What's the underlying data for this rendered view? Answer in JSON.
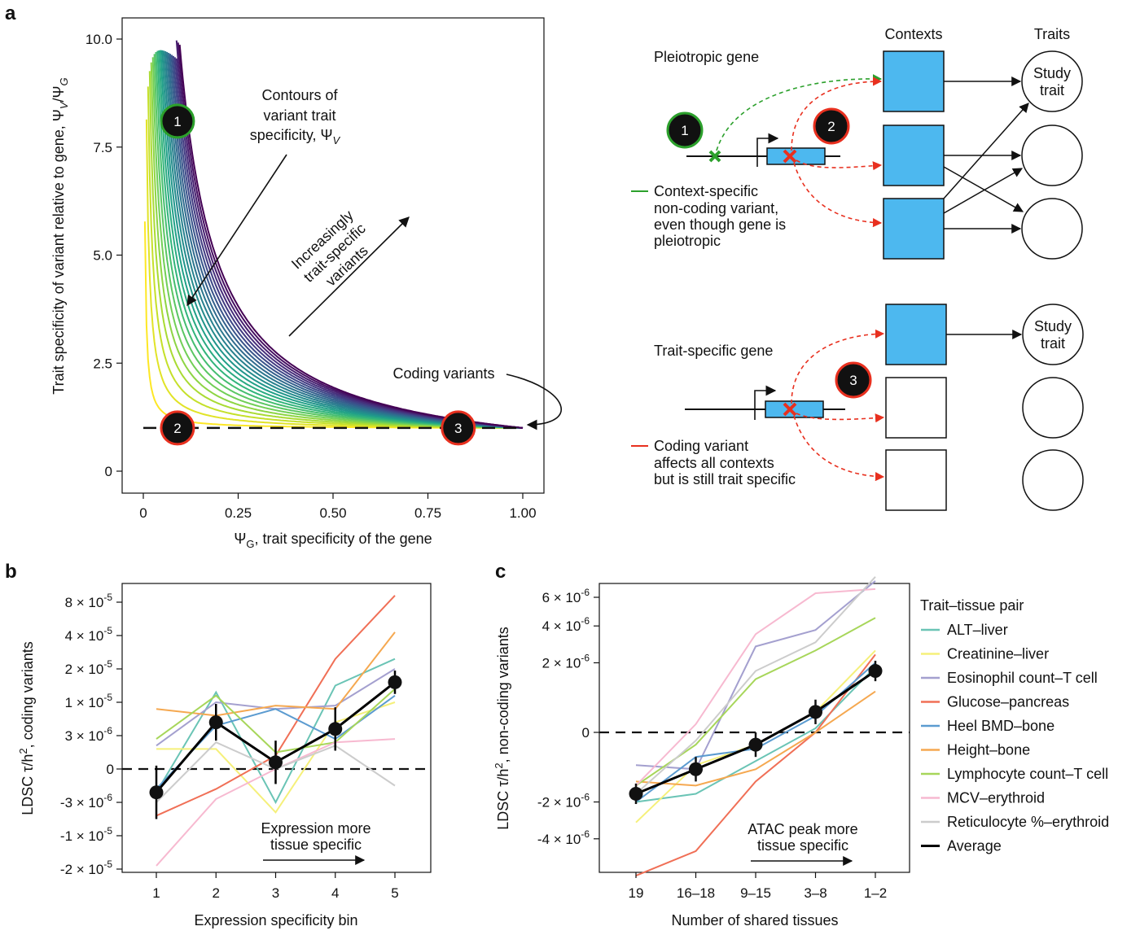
{
  "panels": {
    "a": "a",
    "b": "b",
    "c": "c"
  },
  "chart_data": [
    {
      "id": "a",
      "type": "line",
      "xlabel_pre": "Ψ",
      "xlabel_sub": "G",
      "xlabel_post": ", trait specificity of the gene",
      "ylabel": "Trait specificity of variant relative to gene, Ψ",
      "ylabel_sub1": "V",
      "ylabel_mid": "/Ψ",
      "ylabel_sub2": "G",
      "xlim": [
        0,
        1
      ],
      "ylim": [
        0,
        10
      ],
      "xticks": [
        0,
        0.25,
        0.5,
        0.75,
        1.0
      ],
      "xtick_labels": [
        "0",
        "0.25",
        "0.50",
        "0.75",
        "1.00"
      ],
      "yticks": [
        0,
        2.5,
        5.0,
        7.5,
        10.0
      ],
      "ytick_labels": [
        "0",
        "2.5",
        "5.0",
        "7.5",
        "10.0"
      ],
      "contour_psiV": [
        0.02,
        0.06,
        0.1,
        0.14,
        0.18,
        0.22,
        0.26,
        0.3,
        0.34,
        0.38,
        0.42,
        0.46,
        0.5,
        0.54,
        0.58,
        0.62,
        0.66,
        0.7,
        0.74,
        0.78,
        0.82,
        0.86,
        0.9,
        0.94
      ],
      "colormap": [
        "#fde725",
        "#b5de2b",
        "#6ece58",
        "#35b779",
        "#1f9e89",
        "#26828e",
        "#31688e",
        "#3e4989",
        "#482878",
        "#440154"
      ],
      "reference_line_y": 1,
      "points": [
        {
          "label": "1",
          "x": 0.09,
          "y": 8.1,
          "ring": "#2ca02c"
        },
        {
          "label": "2",
          "x": 0.09,
          "y": 1.0,
          "ring": "#e8301f"
        },
        {
          "label": "3",
          "x": 0.83,
          "y": 1.0,
          "ring": "#e8301f"
        }
      ],
      "annotations": {
        "contours": [
          "Contours of",
          "variant trait",
          "specificity, Ψ"
        ],
        "contours_sub": "V",
        "increasing": [
          "Increasingly",
          "trait-specific",
          "variants"
        ],
        "coding": "Coding variants"
      }
    },
    {
      "id": "b",
      "type": "line",
      "xlabel": "Expression specificity bin",
      "ylabel_pre": "LDSC τ/h",
      "ylabel_sup": "2",
      "ylabel_post": ", coding variants",
      "categories": [
        "1",
        "2",
        "3",
        "4",
        "5"
      ],
      "ytick_labels": [
        "8 × 10",
        "4 × 10",
        "2 × 10",
        "1 × 10",
        "3 × 10",
        "0",
        "-3 × 10",
        "-1 × 10",
        "-2 × 10"
      ],
      "ytick_exps": [
        "-5",
        "-5",
        "-5",
        "-5",
        "-6",
        "",
        "-6",
        "-5",
        "-5"
      ],
      "yticks_transformed": [
        8,
        7,
        6,
        5,
        4,
        3,
        2,
        1,
        0
      ],
      "annotation": [
        "Expression more",
        "tissue specific"
      ],
      "series": [
        {
          "name": "ALT–liver",
          "color": "#6ac4b5",
          "values": [
            2.3,
            5.3,
            2.0,
            5.5,
            6.3
          ]
        },
        {
          "name": "Creatinine–liver",
          "color": "#f5f07a",
          "values": [
            3.6,
            3.6,
            1.7,
            4.4,
            5.0
          ]
        },
        {
          "name": "Eosinophil count–T cell",
          "color": "#a4a0cf",
          "values": [
            3.7,
            5.0,
            4.8,
            4.9,
            6.0
          ]
        },
        {
          "name": "Glucose–pancreas",
          "color": "#f06f56",
          "values": [
            1.6,
            2.4,
            3.4,
            6.3,
            8.2
          ]
        },
        {
          "name": "Heel BMD–bone",
          "color": "#5b9bd0",
          "values": [
            2.4,
            4.3,
            4.8,
            3.9,
            5.2
          ]
        },
        {
          "name": "Height–bone",
          "color": "#f5a850",
          "values": [
            4.8,
            4.6,
            4.9,
            4.8,
            7.1
          ]
        },
        {
          "name": "Lymphocyte count–T cell",
          "color": "#a7d65a",
          "values": [
            3.9,
            5.2,
            3.5,
            3.8,
            5.4
          ]
        },
        {
          "name": "MCV–erythroid",
          "color": "#f7b9d0",
          "values": [
            0.1,
            2.1,
            3.0,
            3.8,
            3.9
          ]
        },
        {
          "name": "Reticulocyte %–erythroid",
          "color": "#cccccc",
          "values": [
            2.0,
            3.8,
            3.0,
            3.7,
            2.5
          ]
        },
        {
          "name": "Average",
          "color": "#000000",
          "values": [
            2.3,
            4.4,
            3.2,
            4.2,
            5.6
          ],
          "err": [
            0.8,
            0.55,
            0.65,
            0.65,
            0.35
          ]
        }
      ]
    },
    {
      "id": "c",
      "type": "line",
      "xlabel": "Number of shared tissues",
      "ylabel_pre": "LDSC τ/h",
      "ylabel_sup": "2",
      "ylabel_post": ", non-coding variants",
      "categories": [
        "19",
        "16–18",
        "9–15",
        "3–8",
        "1–2"
      ],
      "ytick_labels": [
        "6 × 10",
        "4 × 10",
        "2 × 10",
        "0",
        "-2 × 10",
        "-4 × 10"
      ],
      "ytick_exps": [
        "-6",
        "-6",
        "-6",
        "",
        "-6",
        "-6"
      ],
      "yticks_transformed": [
        3.3,
        2.6,
        1.7,
        0,
        -1.7,
        -2.6
      ],
      "annotation": [
        "ATAC peak more",
        "tissue specific"
      ],
      "series": [
        {
          "name": "ALT–liver",
          "color": "#6ac4b5",
          "values": [
            -1.7,
            -1.5,
            -0.7,
            0.1,
            1.6
          ]
        },
        {
          "name": "Creatinine–liver",
          "color": "#f5f07a",
          "values": [
            -2.2,
            -0.8,
            -0.3,
            0.5,
            2.0
          ]
        },
        {
          "name": "Eosinophil count–T cell",
          "color": "#a4a0cf",
          "values": [
            -0.8,
            -0.9,
            2.1,
            2.5,
            3.7
          ]
        },
        {
          "name": "Glucose–pancreas",
          "color": "#f06f56",
          "values": [
            -3.5,
            -2.9,
            -1.2,
            0.0,
            1.9
          ]
        },
        {
          "name": "Heel BMD–bone",
          "color": "#5b9bd0",
          "values": [
            -1.7,
            -0.6,
            -0.4,
            0.4,
            1.7
          ]
        },
        {
          "name": "Height–bone",
          "color": "#f5a850",
          "values": [
            -1.2,
            -1.3,
            -0.9,
            0.0,
            1.0
          ]
        },
        {
          "name": "Lymphocyte count–T cell",
          "color": "#a7d65a",
          "values": [
            -1.3,
            -0.3,
            1.3,
            2.0,
            2.8
          ]
        },
        {
          "name": "MCV–erythroid",
          "color": "#f7b9d0",
          "values": [
            -1.3,
            0.2,
            2.4,
            3.4,
            3.5
          ]
        },
        {
          "name": "Reticulocyte %–erythroid",
          "color": "#cccccc",
          "values": [
            -1.5,
            -0.2,
            1.5,
            2.2,
            3.8
          ]
        },
        {
          "name": "Average",
          "color": "#000000",
          "values": [
            -1.5,
            -0.9,
            -0.3,
            0.5,
            1.5
          ],
          "err": [
            0.25,
            0.3,
            0.3,
            0.3,
            0.25
          ]
        }
      ]
    }
  ],
  "legend": {
    "title": "Trait–tissue pair",
    "items": [
      "ALT–liver",
      "Creatinine–liver",
      "Eosinophil count–T cell",
      "Glucose–pancreas",
      "Heel BMD–bone",
      "Height–bone",
      "Lymphocyte count–T cell",
      "MCV–erythroid",
      "Reticulocyte %–erythroid",
      "Average"
    ],
    "colors": [
      "#6ac4b5",
      "#f5f07a",
      "#a4a0cf",
      "#f06f56",
      "#5b9bd0",
      "#f5a850",
      "#a7d65a",
      "#f7b9d0",
      "#cccccc",
      "#000000"
    ]
  },
  "schematic": {
    "headers": {
      "contexts": "Contexts",
      "traits": "Traits"
    },
    "pleiotropic_title": "Pleiotropic gene",
    "trait_specific_title": "Trait-specific gene",
    "study_trait": [
      "Study",
      "trait"
    ],
    "green_note": [
      "Context-specific",
      "non-coding variant,",
      "even though gene is",
      "pleiotropic"
    ],
    "red_note": [
      "Coding variant",
      "affects all contexts",
      "but is still trait specific"
    ],
    "markers": [
      "1",
      "2",
      "3"
    ],
    "colors": {
      "context_fill": "#4db8ef",
      "green": "#2ca02c",
      "red": "#e8301f",
      "marker": "#111111"
    }
  }
}
